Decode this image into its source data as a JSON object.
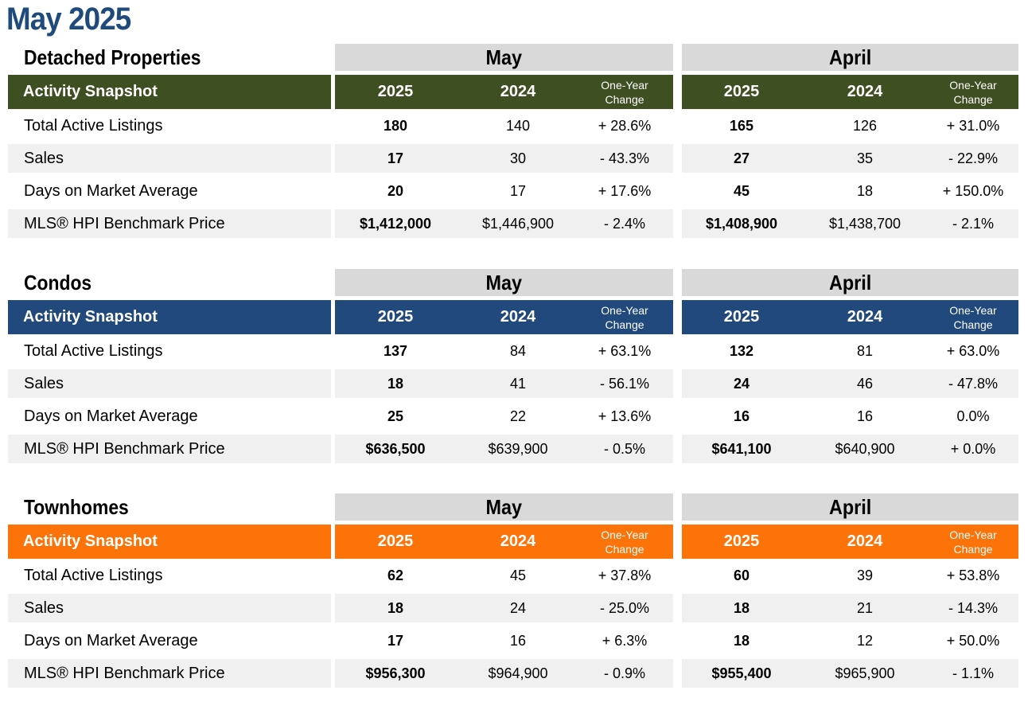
{
  "page_title": "May 2025",
  "labels": {
    "snapshot": "Activity Snapshot",
    "period_current": "May",
    "period_prior": "April",
    "year_current": "2025",
    "year_prior": "2024",
    "change_line1": "One-Year",
    "change_line2": "Change"
  },
  "colors": {
    "title": "#1f4a7c",
    "detached": "#3e4f22",
    "condos": "#21497c",
    "townhomes": "#fc7409",
    "period_band": "#d9d9d9",
    "row_stripe": "#f0f0f0"
  },
  "sections": [
    {
      "title": "Detached Properties",
      "color_key": "detached",
      "rows": [
        {
          "label": "Total Active Listings",
          "may_2025": "180",
          "may_2024": "140",
          "may_change": "+ 28.6%",
          "apr_2025": "165",
          "apr_2024": "126",
          "apr_change": "+ 31.0%"
        },
        {
          "label": "Sales",
          "may_2025": "17",
          "may_2024": "30",
          "may_change": "- 43.3%",
          "apr_2025": "27",
          "apr_2024": "35",
          "apr_change": "- 22.9%"
        },
        {
          "label": "Days on Market Average",
          "may_2025": "20",
          "may_2024": "17",
          "may_change": "+ 17.6%",
          "apr_2025": "45",
          "apr_2024": "18",
          "apr_change": "+ 150.0%"
        },
        {
          "label": "MLS® HPI Benchmark Price",
          "may_2025": "$1,412,000",
          "may_2024": "$1,446,900",
          "may_change": "- 2.4%",
          "apr_2025": "$1,408,900",
          "apr_2024": "$1,438,700",
          "apr_change": "- 2.1%"
        }
      ]
    },
    {
      "title": "Condos",
      "color_key": "condos",
      "rows": [
        {
          "label": "Total Active Listings",
          "may_2025": "137",
          "may_2024": "84",
          "may_change": "+ 63.1%",
          "apr_2025": "132",
          "apr_2024": "81",
          "apr_change": "+ 63.0%"
        },
        {
          "label": "Sales",
          "may_2025": "18",
          "may_2024": "41",
          "may_change": "- 56.1%",
          "apr_2025": "24",
          "apr_2024": "46",
          "apr_change": "- 47.8%"
        },
        {
          "label": "Days on Market Average",
          "may_2025": "25",
          "may_2024": "22",
          "may_change": "+ 13.6%",
          "apr_2025": "16",
          "apr_2024": "16",
          "apr_change": "0.0%"
        },
        {
          "label": "MLS® HPI Benchmark Price",
          "may_2025": "$636,500",
          "may_2024": "$639,900",
          "may_change": "- 0.5%",
          "apr_2025": "$641,100",
          "apr_2024": "$640,900",
          "apr_change": "+ 0.0%"
        }
      ]
    },
    {
      "title": "Townhomes",
      "color_key": "townhomes",
      "rows": [
        {
          "label": "Total Active Listings",
          "may_2025": "62",
          "may_2024": "45",
          "may_change": "+ 37.8%",
          "apr_2025": "60",
          "apr_2024": "39",
          "apr_change": "+ 53.8%"
        },
        {
          "label": "Sales",
          "may_2025": "18",
          "may_2024": "24",
          "may_change": "- 25.0%",
          "apr_2025": "18",
          "apr_2024": "21",
          "apr_change": "- 14.3%"
        },
        {
          "label": "Days on Market Average",
          "may_2025": "17",
          "may_2024": "16",
          "may_change": "+ 6.3%",
          "apr_2025": "18",
          "apr_2024": "12",
          "apr_change": "+ 50.0%"
        },
        {
          "label": "MLS® HPI Benchmark Price",
          "may_2025": "$956,300",
          "may_2024": "$964,900",
          "may_change": "- 0.9%",
          "apr_2025": "$955,400",
          "apr_2024": "$965,900",
          "apr_change": "- 1.1%"
        }
      ]
    }
  ]
}
